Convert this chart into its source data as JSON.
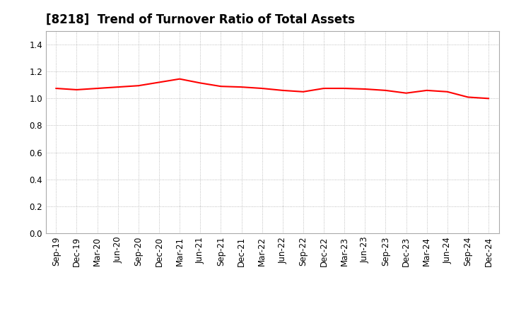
{
  "title": "[8218]  Trend of Turnover Ratio of Total Assets",
  "line_color": "#FF0000",
  "line_width": 1.5,
  "background_color": "#FFFFFF",
  "grid_color": "#AAAAAA",
  "ylim": [
    0.0,
    1.5
  ],
  "yticks": [
    0.0,
    0.2,
    0.4,
    0.6,
    0.8,
    1.0,
    1.2,
    1.4
  ],
  "x_labels": [
    "Sep-19",
    "Dec-19",
    "Mar-20",
    "Jun-20",
    "Sep-20",
    "Dec-20",
    "Mar-21",
    "Jun-21",
    "Sep-21",
    "Dec-21",
    "Mar-22",
    "Jun-22",
    "Sep-22",
    "Dec-22",
    "Mar-23",
    "Jun-23",
    "Sep-23",
    "Dec-23",
    "Mar-24",
    "Jun-24",
    "Sep-24",
    "Dec-24"
  ],
  "values": [
    1.075,
    1.065,
    1.075,
    1.085,
    1.095,
    1.12,
    1.145,
    1.115,
    1.09,
    1.085,
    1.075,
    1.06,
    1.05,
    1.075,
    1.075,
    1.07,
    1.06,
    1.04,
    1.06,
    1.05,
    1.01,
    1.0
  ],
  "title_fontsize": 12,
  "tick_fontsize": 8.5
}
